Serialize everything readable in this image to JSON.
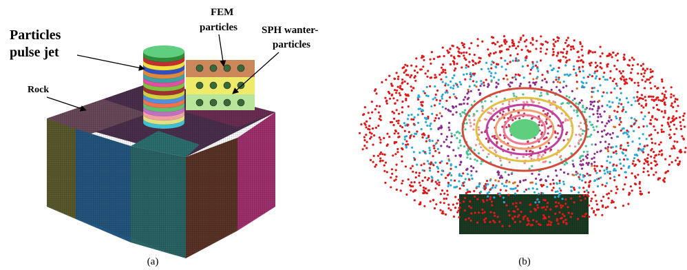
{
  "panel_a": {
    "jet_label": [
      "Particles",
      "pulse jet"
    ],
    "rock_label": "Rock",
    "fem_label": [
      "FEM",
      "particles"
    ],
    "sph_label": [
      "SPH wanter-",
      "particles"
    ],
    "caption": "(a)"
  },
  "panel_b": {
    "caption": "(b)"
  }
}
